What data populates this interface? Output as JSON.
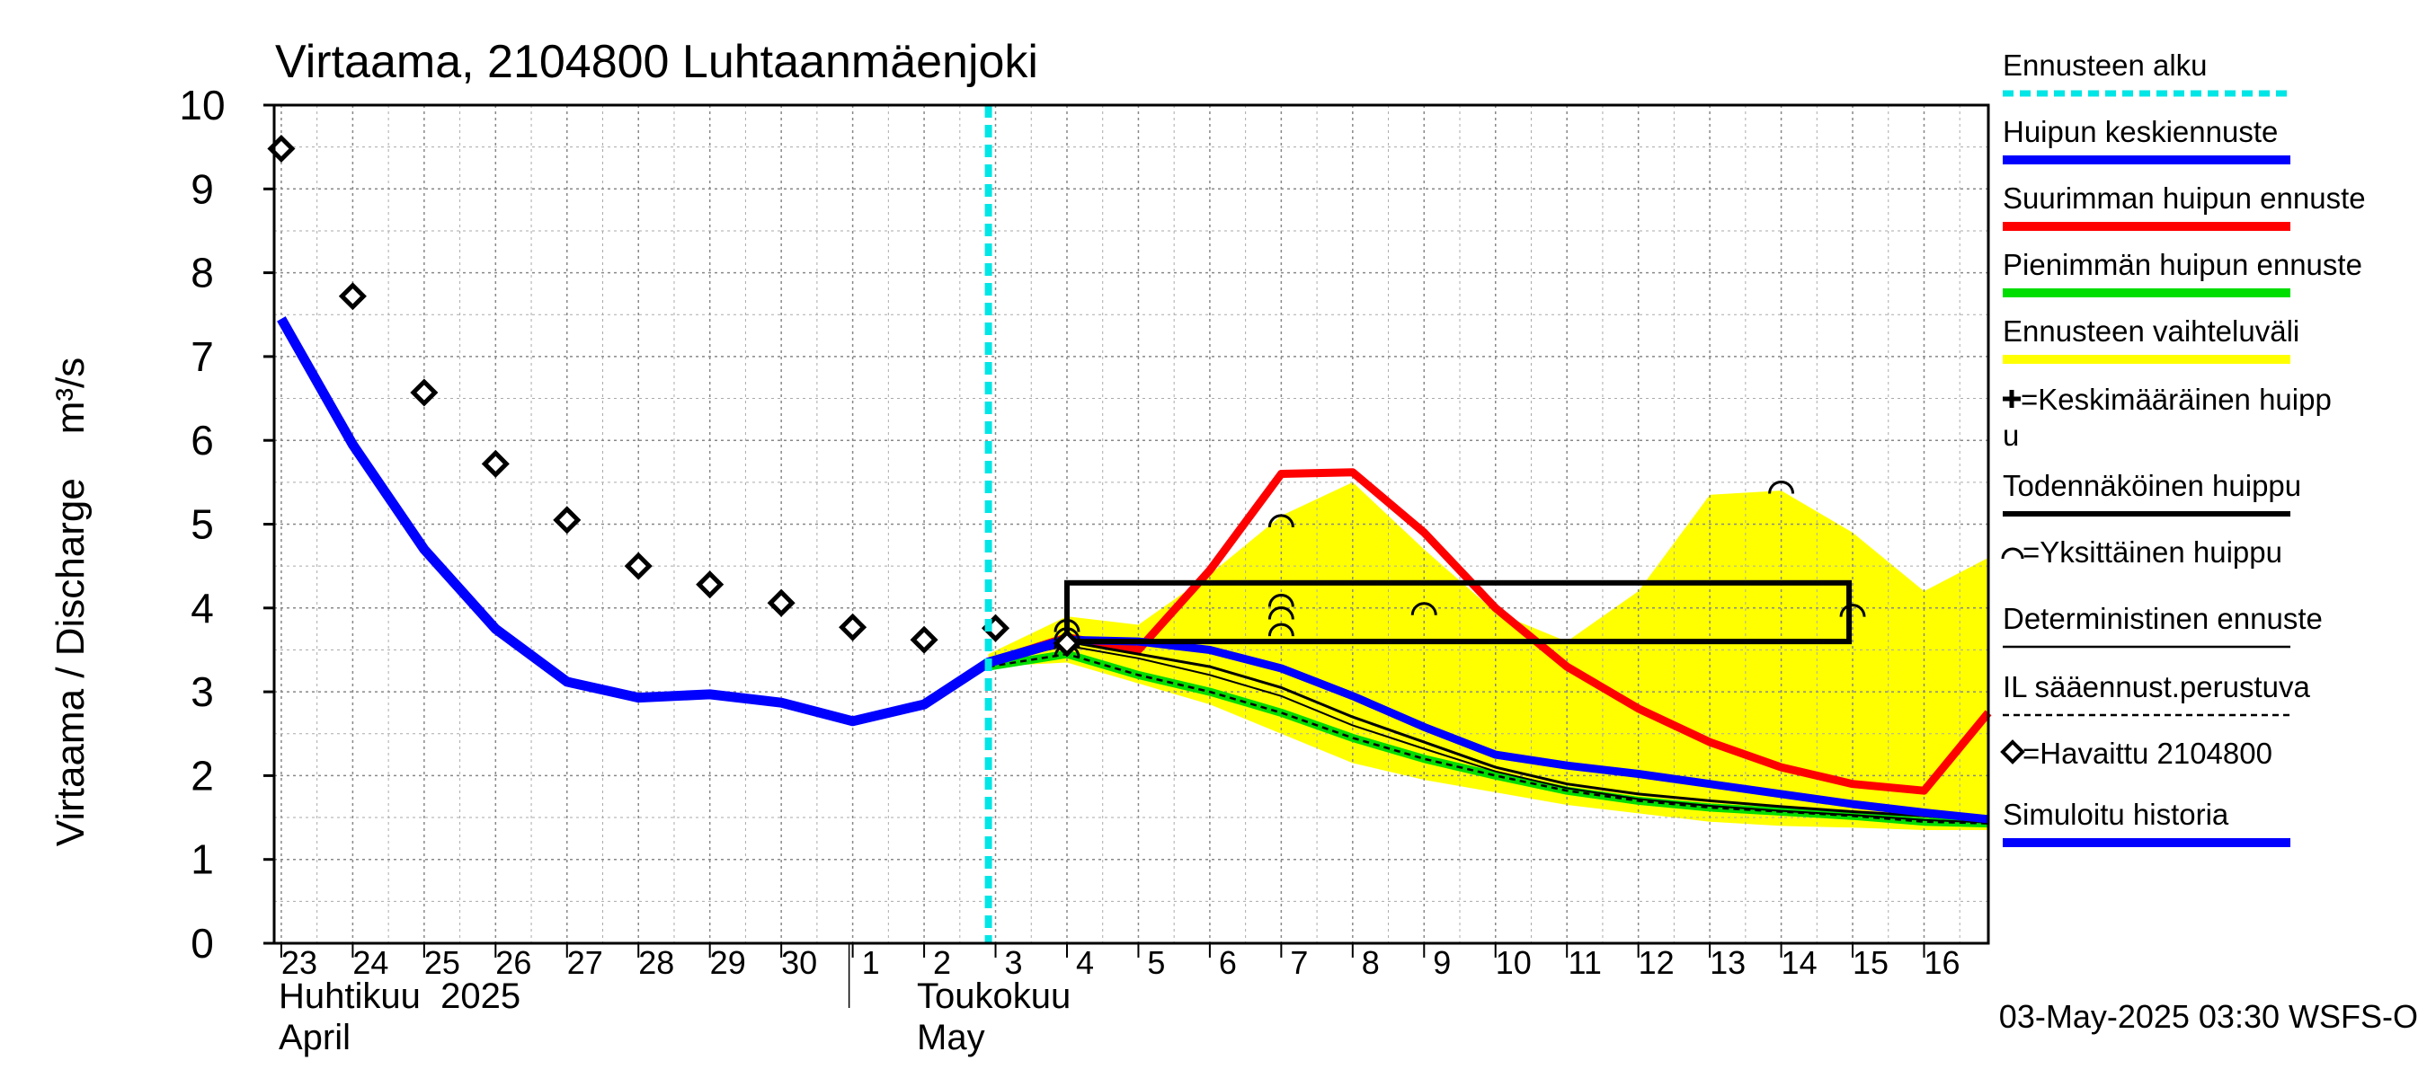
{
  "chart_data": {
    "type": "line",
    "title": "Virtaama, 2104800 Luhtaanmäenjoki",
    "ylabel": "Virtaama / Discharge    m³/s",
    "ylim": [
      0,
      10
    ],
    "y_ticks": [
      "0",
      "1",
      "2",
      "3",
      "4",
      "5",
      "6",
      "7",
      "8",
      "9",
      "10"
    ],
    "x_range": [
      22.9,
      46.9
    ],
    "x_ticks": [
      {
        "x": 23,
        "label": "23"
      },
      {
        "x": 24,
        "label": "24"
      },
      {
        "x": 25,
        "label": "25"
      },
      {
        "x": 26,
        "label": "26"
      },
      {
        "x": 27,
        "label": "27"
      },
      {
        "x": 28,
        "label": "28"
      },
      {
        "x": 29,
        "label": "29"
      },
      {
        "x": 30,
        "label": "30"
      },
      {
        "x": 31,
        "label": "1"
      },
      {
        "x": 32,
        "label": "2"
      },
      {
        "x": 33,
        "label": "3"
      },
      {
        "x": 34,
        "label": "4"
      },
      {
        "x": 35,
        "label": "5"
      },
      {
        "x": 36,
        "label": "6"
      },
      {
        "x": 37,
        "label": "7"
      },
      {
        "x": 38,
        "label": "8"
      },
      {
        "x": 39,
        "label": "9"
      },
      {
        "x": 40,
        "label": "10"
      },
      {
        "x": 41,
        "label": "11"
      },
      {
        "x": 42,
        "label": "12"
      },
      {
        "x": 43,
        "label": "13"
      },
      {
        "x": 44,
        "label": "14"
      },
      {
        "x": 45,
        "label": "15"
      },
      {
        "x": 46,
        "label": "16"
      }
    ],
    "month_labels": {
      "april_fi": "Huhtikuu  2025",
      "april_en": "April",
      "may_fi": "Toukokuu",
      "may_en": "May"
    },
    "forecast_start_x": 32.9,
    "series": {
      "forecast_range": {
        "name": "Ennusteen vaihteluväli",
        "color": "#ffff00",
        "x": [
          32.9,
          34,
          35,
          36,
          37,
          38,
          39,
          40,
          41,
          42,
          43,
          44,
          45,
          46,
          46.9
        ],
        "upper": [
          3.45,
          3.9,
          3.8,
          4.4,
          5.1,
          5.5,
          4.7,
          3.95,
          3.6,
          4.2,
          5.35,
          5.4,
          4.9,
          4.2,
          4.6
        ],
        "lower": [
          3.3,
          3.35,
          3.1,
          2.85,
          2.5,
          2.15,
          1.95,
          1.8,
          1.65,
          1.55,
          1.45,
          1.4,
          1.38,
          1.35,
          1.35
        ]
      },
      "suurin": {
        "name": "Suurimman huipun ennuste",
        "color": "#ff0000",
        "x": [
          32.9,
          34,
          35,
          36,
          37,
          38,
          39,
          40,
          41,
          42,
          43,
          44,
          45,
          46,
          46.9
        ],
        "y": [
          3.35,
          3.65,
          3.5,
          4.45,
          5.6,
          5.62,
          4.9,
          4.0,
          3.3,
          2.8,
          2.4,
          2.1,
          1.9,
          1.82,
          2.75
        ]
      },
      "pienin": {
        "name": "Pienimmän huipun ennuste",
        "color": "#00dd00",
        "x": [
          32.9,
          34,
          35,
          36,
          37,
          38,
          39,
          40,
          41,
          42,
          43,
          44,
          45,
          46,
          46.9
        ],
        "y": [
          3.3,
          3.45,
          3.2,
          3.0,
          2.75,
          2.45,
          2.2,
          2.0,
          1.82,
          1.7,
          1.62,
          1.57,
          1.52,
          1.45,
          1.43
        ]
      },
      "il": {
        "name": "IL sääennust.perustuva",
        "color": "#000000",
        "x": [
          32.9,
          34,
          35,
          36,
          37,
          38,
          39,
          40,
          41,
          42,
          43,
          44,
          45,
          46,
          46.9
        ],
        "y": [
          3.3,
          3.45,
          3.2,
          3.0,
          2.75,
          2.45,
          2.2,
          2.0,
          1.82,
          1.7,
          1.62,
          1.57,
          1.52,
          1.45,
          1.43
        ]
      },
      "todennakoinen": {
        "name": "Todennäköinen huippu",
        "color": "#000000",
        "x": [
          32.9,
          34,
          35,
          36,
          37,
          38,
          39,
          40,
          41,
          42,
          43,
          44,
          45,
          46,
          46.9
        ],
        "y": [
          3.35,
          3.6,
          3.45,
          3.3,
          3.05,
          2.7,
          2.4,
          2.1,
          1.9,
          1.78,
          1.7,
          1.63,
          1.57,
          1.52,
          1.47
        ]
      },
      "deterministinen": {
        "name": "Deterministinen ennuste",
        "color": "#000000",
        "x": [
          32.9,
          34,
          35,
          36,
          37,
          38,
          39,
          40,
          41,
          42,
          43,
          44,
          45,
          46,
          46.9
        ],
        "y": [
          3.35,
          3.55,
          3.4,
          3.2,
          2.95,
          2.6,
          2.32,
          2.05,
          1.85,
          1.72,
          1.64,
          1.58,
          1.53,
          1.47,
          1.44
        ]
      },
      "keskiennuste": {
        "name": "Huipun keskiennuste",
        "color": "#0000ff",
        "x": [
          32.9,
          34,
          35,
          36,
          37,
          38,
          39,
          40,
          41,
          42,
          43,
          44,
          45,
          46,
          46.9
        ],
        "y": [
          3.35,
          3.62,
          3.6,
          3.5,
          3.28,
          2.95,
          2.58,
          2.25,
          2.12,
          2.02,
          1.9,
          1.78,
          1.66,
          1.56,
          1.48
        ]
      },
      "simuloitu": {
        "name": "Simuloitu historia",
        "color": "#0000ff",
        "x": [
          23,
          24,
          25,
          26,
          27,
          28,
          29,
          30,
          31,
          32,
          32.9,
          34
        ],
        "y": [
          7.45,
          5.95,
          4.7,
          3.75,
          3.12,
          2.93,
          2.97,
          2.87,
          2.65,
          2.85,
          3.35,
          3.62
        ]
      },
      "havaittu": {
        "name": "=Havaittu 2104800",
        "color": "#000000",
        "x": [
          23,
          24,
          25,
          26,
          27,
          28,
          29,
          30,
          31,
          32,
          33,
          34
        ],
        "y": [
          9.48,
          7.72,
          6.57,
          5.72,
          5.05,
          4.5,
          4.28,
          4.06,
          3.77,
          3.62,
          3.76,
          3.58
        ]
      }
    },
    "peak_box": {
      "x0": 34.0,
      "x1": 44.95,
      "y0": 3.6,
      "y1": 4.3
    },
    "single_peaks": [
      {
        "x": 37.0,
        "y": 5.05
      },
      {
        "x": 37.0,
        "y": 4.1
      },
      {
        "x": 37.0,
        "y": 3.95
      },
      {
        "x": 37.0,
        "y": 3.75
      },
      {
        "x": 39.0,
        "y": 4.0
      },
      {
        "x": 44.0,
        "y": 5.45
      },
      {
        "x": 45.0,
        "y": 3.98
      },
      {
        "x": 34.0,
        "y": 3.8
      },
      {
        "x": 34.0,
        "y": 3.7
      },
      {
        "x": 34.0,
        "y": 3.6
      },
      {
        "x": 34.0,
        "y": 3.5
      }
    ],
    "mean_peak": {
      "x": 34.0,
      "y": 3.62
    },
    "legend": [
      {
        "key": "alku",
        "label": "Ennusteen alku",
        "color": "#00e5e5",
        "style": "dashed-cyan"
      },
      {
        "key": "kesk",
        "label": "Huipun keskiennuste",
        "color": "#0000ff",
        "style": "thick"
      },
      {
        "key": "suur",
        "label": "Suurimman huipun ennuste",
        "color": "#ff0000",
        "style": "thick"
      },
      {
        "key": "pien",
        "label": "Pienimmän huipun ennuste",
        "color": "#00dd00",
        "style": "thick"
      },
      {
        "key": "vaiht",
        "label": "Ennusteen vaihteluväli",
        "color": "#ffff00",
        "style": "thick"
      },
      {
        "key": "keskhuippu",
        "label": "=Keskimääräinen huipp",
        "label2": "u",
        "color": "#000000",
        "style": "plus"
      },
      {
        "key": "tod",
        "label": "Todennäköinen huippu",
        "color": "#000000",
        "style": "medium"
      },
      {
        "key": "yks",
        "label": "=Yksittäinen huippu",
        "color": "#000000",
        "style": "arc"
      },
      {
        "key": "det",
        "label": "Deterministinen ennuste",
        "color": "#000000",
        "style": "thin"
      },
      {
        "key": "il",
        "label": "IL sääennust.perustuva",
        "color": "#000000",
        "style": "dashed-thin"
      },
      {
        "key": "hav",
        "label": "=Havaittu 2104800",
        "color": "#000000",
        "style": "diamond"
      },
      {
        "key": "sim",
        "label": "Simuloitu historia",
        "color": "#0000ff",
        "style": "thick"
      }
    ],
    "timestamp": "03-May-2025 03:30 WSFS-O"
  }
}
